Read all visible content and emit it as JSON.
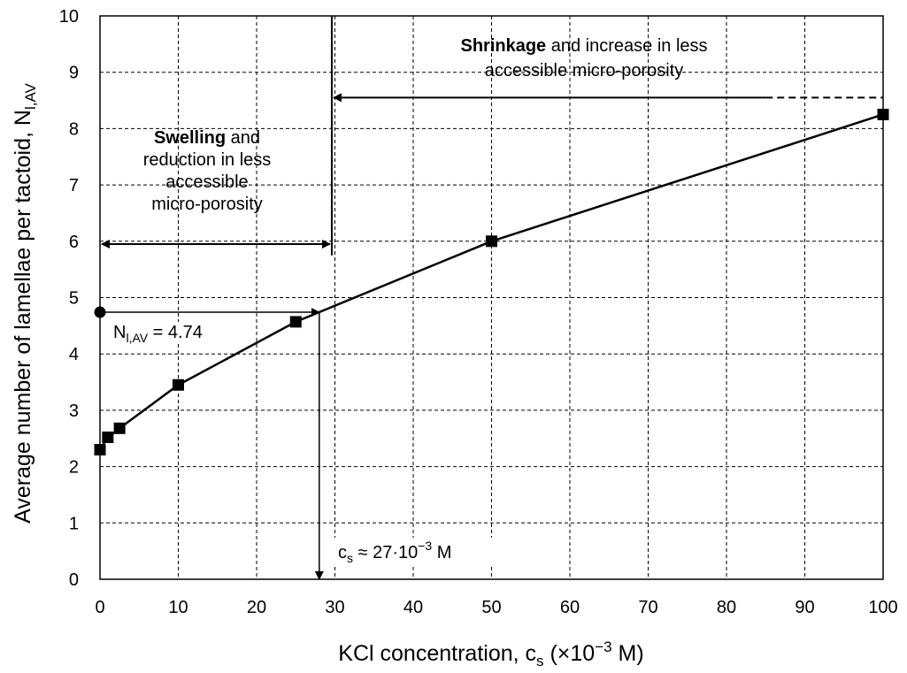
{
  "chart_data": {
    "type": "line",
    "xlabel": {
      "main": "KCl concentration, c",
      "sub": "s",
      "tail": " (×10",
      "sup": "−3",
      "end": " M)"
    },
    "ylabel": {
      "main": "Average number of lamellae per tactoid, N",
      "sub": "l,AV"
    },
    "xlim": [
      0,
      100
    ],
    "ylim": [
      0,
      10
    ],
    "x_ticks": [
      0,
      10,
      20,
      30,
      40,
      50,
      60,
      70,
      80,
      90,
      100
    ],
    "y_ticks": [
      0,
      1,
      2,
      3,
      4,
      5,
      6,
      7,
      8,
      9,
      10
    ],
    "grid": true,
    "series": [
      {
        "marker": "square",
        "color": "#000000",
        "points": [
          {
            "x": 0,
            "y": 2.3
          },
          {
            "x": 1,
            "y": 2.52
          },
          {
            "x": 2.5,
            "y": 2.68
          },
          {
            "x": 10,
            "y": 3.45
          },
          {
            "x": 25,
            "y": 4.57
          },
          {
            "x": 50,
            "y": 6.0
          },
          {
            "x": 100,
            "y": 8.25
          }
        ]
      }
    ],
    "annotations": {
      "threshold_x": 27,
      "reference_point": {
        "x": 0,
        "y": 4.74
      },
      "reference_label": {
        "main": "N",
        "sub": "l,AV",
        "rest": " = 4.74"
      },
      "cs_label": {
        "main": "c",
        "sub": "s",
        "mid": " ≈ 27·10",
        "sup": "−3",
        "end": " M"
      },
      "swelling_text": {
        "bold": "Swelling",
        "line1_rest": " and",
        "line2": "reduction in less",
        "line3": "accessible",
        "line4": "micro-porosity"
      },
      "shrinkage_text": {
        "bold": "Shrinkage",
        "line1_rest": " and increase in less",
        "line2": "accessible micro-porosity"
      },
      "swelling_arrow_y": 5.95,
      "shrinkage_arrow_y": 8.55,
      "shrinkage_arrow_dash_from_x": 85
    }
  }
}
